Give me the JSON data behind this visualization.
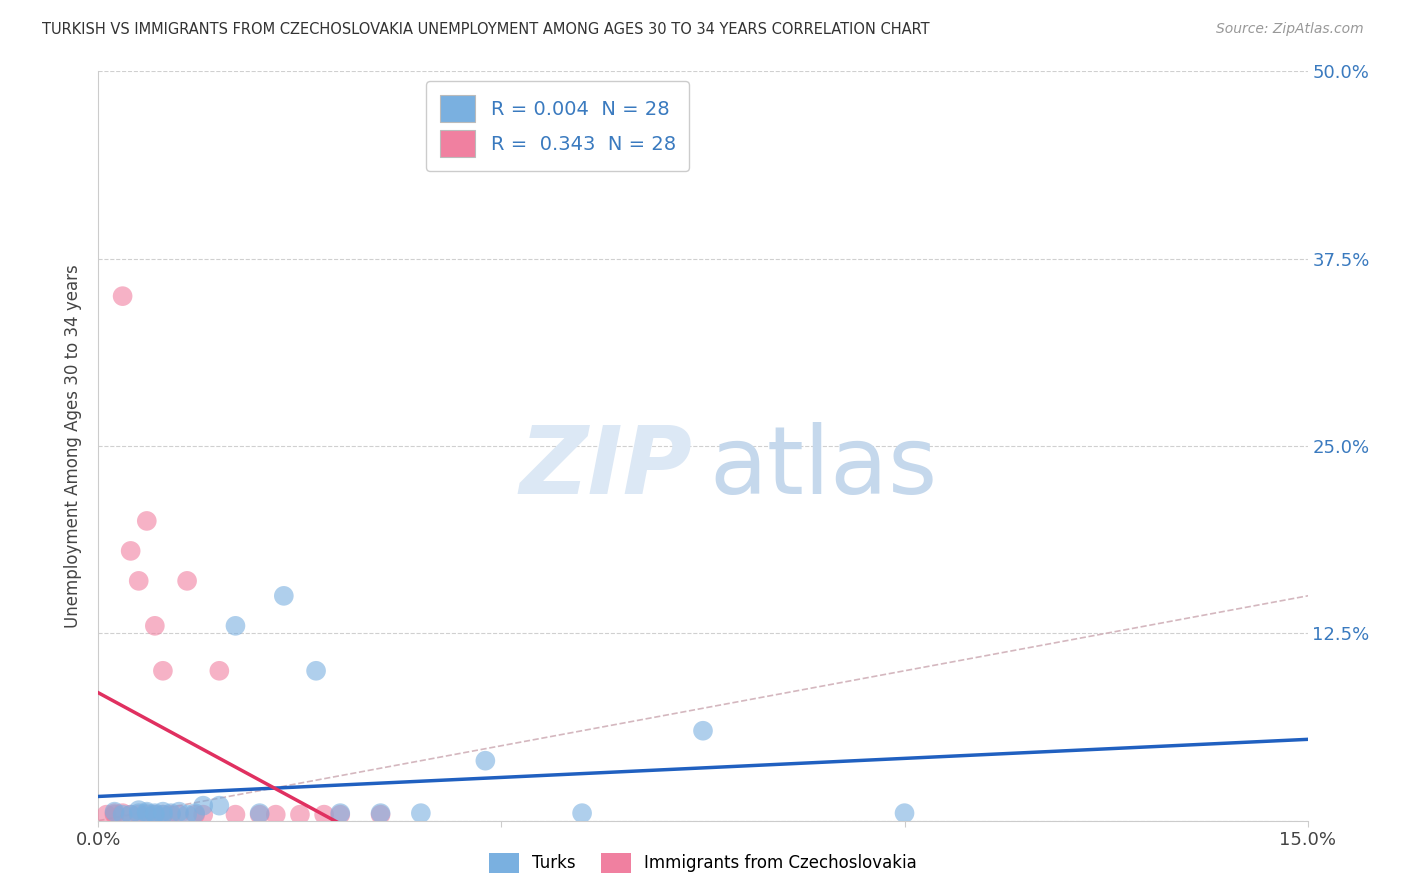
{
  "title": "TURKISH VS IMMIGRANTS FROM CZECHOSLOVAKIA UNEMPLOYMENT AMONG AGES 30 TO 34 YEARS CORRELATION CHART",
  "source": "Source: ZipAtlas.com",
  "ylabel": "Unemployment Among Ages 30 to 34 years",
  "xlim": [
    0.0,
    0.15
  ],
  "ylim": [
    0.0,
    0.5
  ],
  "grid_color": "#d0d0d0",
  "background_color": "#ffffff",
  "legend_entries": [
    {
      "label": "R = 0.004  N = 28",
      "color": "#a8c8e8"
    },
    {
      "label": "R =  0.343  N = 28",
      "color": "#f0a0b8"
    }
  ],
  "legend_labels_bottom": [
    "Turks",
    "Immigrants from Czechoslovakia"
  ],
  "turks_color": "#7ab0e0",
  "czechs_color": "#f080a0",
  "turks_line_color": "#2060c0",
  "czechs_line_color": "#e03060",
  "diag_line_color": "#d0b0b8",
  "turks_x": [
    0.002,
    0.003,
    0.004,
    0.005,
    0.005,
    0.006,
    0.006,
    0.007,
    0.007,
    0.008,
    0.008,
    0.009,
    0.01,
    0.011,
    0.012,
    0.013,
    0.015,
    0.017,
    0.02,
    0.023,
    0.027,
    0.03,
    0.035,
    0.04,
    0.048,
    0.06,
    0.075,
    0.1
  ],
  "turks_y": [
    0.006,
    0.004,
    0.004,
    0.005,
    0.007,
    0.005,
    0.006,
    0.004,
    0.005,
    0.004,
    0.006,
    0.005,
    0.006,
    0.004,
    0.005,
    0.01,
    0.01,
    0.13,
    0.005,
    0.15,
    0.1,
    0.005,
    0.005,
    0.005,
    0.04,
    0.005,
    0.06,
    0.005
  ],
  "czechs_x": [
    0.001,
    0.002,
    0.002,
    0.003,
    0.003,
    0.004,
    0.004,
    0.005,
    0.005,
    0.006,
    0.006,
    0.007,
    0.007,
    0.008,
    0.008,
    0.009,
    0.01,
    0.011,
    0.012,
    0.013,
    0.015,
    0.017,
    0.02,
    0.022,
    0.025,
    0.028,
    0.03,
    0.035
  ],
  "czechs_y": [
    0.004,
    0.004,
    0.005,
    0.005,
    0.35,
    0.004,
    0.18,
    0.004,
    0.16,
    0.004,
    0.2,
    0.004,
    0.13,
    0.004,
    0.1,
    0.004,
    0.004,
    0.16,
    0.004,
    0.004,
    0.1,
    0.004,
    0.004,
    0.004,
    0.004,
    0.004,
    0.004,
    0.004
  ]
}
